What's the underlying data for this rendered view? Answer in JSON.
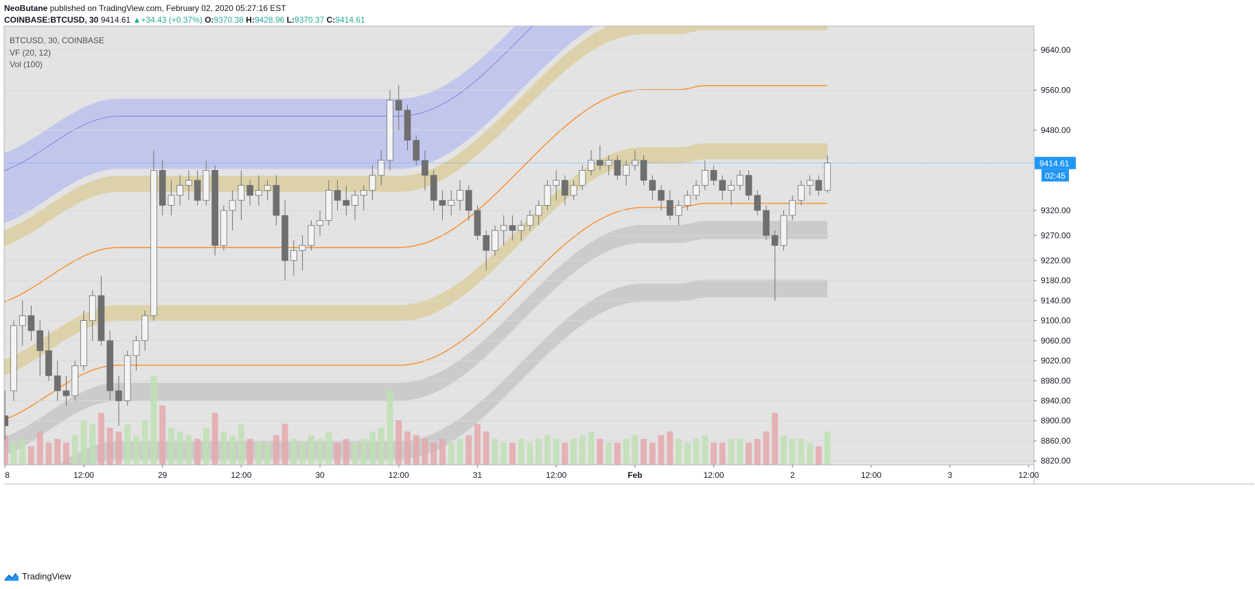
{
  "header": {
    "author": "NeoButane",
    "published_text": "published on TradingView.com, February 02, 2020 05:27:16 EST",
    "symbol_line": "COINBASE:BTCUSD, 30",
    "last": "9414.61",
    "change": "+34.43 (+0.37%)",
    "o_label": "O:",
    "o": "9370.38",
    "h_label": "H:",
    "h": "9428.96",
    "l_label": "L:",
    "l": "9370.37",
    "c_label": "C:",
    "c": "9414.61"
  },
  "legend": {
    "symbol": "BTCUSD, 30, COINBASE",
    "indicator1": "VF (20, 12)",
    "indicator2": "Vol (100)"
  },
  "price_tag": {
    "value": "9414.61",
    "countdown": "02:45"
  },
  "footer": {
    "brand": "TradingView"
  },
  "colors": {
    "background": "#e3e3e3",
    "blue_band": "#c3c6ec",
    "yellow_band": "#dcd1a8",
    "gray_band": "#cbcbcb",
    "orange_line": "#f7953a",
    "candle": "#6f6f6f",
    "price_line": "#2196f3",
    "vol_up": "#bfe0b5",
    "vol_down": "#e4a8ac"
  },
  "chart_data": {
    "type": "candlestick",
    "interval": "30m",
    "y_axis": {
      "ticks": [
        9640,
        9560,
        9480,
        9320,
        9270,
        9220,
        9180,
        9140,
        9100,
        9060,
        9020,
        8980,
        8940,
        8900,
        8860,
        8820
      ],
      "tick_labels": [
        "9640.00",
        "9560.00",
        "9480.00",
        "9320.00",
        "9270.00",
        "9220.00",
        "9180.00",
        "9140.00",
        "9100.00",
        "9060.00",
        "9020.00",
        "8980.00",
        "8940.00",
        "8900.00",
        "8860.00",
        "8820.00"
      ],
      "range": [
        8812,
        9688
      ]
    },
    "x_axis": {
      "ticks": [
        0,
        9,
        18,
        27,
        36,
        45,
        54,
        63,
        72,
        81,
        90,
        99,
        108,
        117
      ],
      "tick_labels": [
        "8",
        "12:00",
        "29",
        "12:00",
        "30",
        "12:00",
        "31",
        "12:00",
        "Feb",
        "12:00",
        "2",
        "12:00",
        "3",
        "12:00"
      ],
      "range": [
        -0.1,
        117.6
      ]
    },
    "last_price": 9414.61,
    "candles": [
      [
        8910.0,
        8960.0,
        8860.0,
        8890.0
      ],
      [
        8960.0,
        9100.0,
        8940.0,
        9090.0
      ],
      [
        9090.0,
        9140.0,
        9050.0,
        9110.0
      ],
      [
        9110.0,
        9130.0,
        9060.0,
        9080.0
      ],
      [
        9080.0,
        9100.0,
        8990.0,
        9040.0
      ],
      [
        9040.0,
        9080.0,
        8980.0,
        8990.0
      ],
      [
        8990.0,
        9020.0,
        8940.0,
        8960.0
      ],
      [
        8960.0,
        8990.0,
        8930.0,
        8950.0
      ],
      [
        8950.0,
        9020.0,
        8940.0,
        9010.0
      ],
      [
        9010.0,
        9120.0,
        9000.0,
        9100.0
      ],
      [
        9100.0,
        9160.0,
        9060.0,
        9150.0
      ],
      [
        9150.0,
        9190.0,
        9050.0,
        9060.0
      ],
      [
        9060.0,
        9080.0,
        8940.0,
        8960.0
      ],
      [
        8960.0,
        8990.0,
        8890.0,
        8940.0
      ],
      [
        8940.0,
        9040.0,
        8930.0,
        9030.0
      ],
      [
        9030.0,
        9070.0,
        9000.0,
        9060.0
      ],
      [
        9060.0,
        9120.0,
        9040.0,
        9110.0
      ],
      [
        9110.0,
        9440.0,
        9100.0,
        9400.0
      ],
      [
        9400.0,
        9420.0,
        9310.0,
        9330.0
      ],
      [
        9330.0,
        9380.0,
        9310.0,
        9350.0
      ],
      [
        9350.0,
        9390.0,
        9330.0,
        9370.0
      ],
      [
        9370.0,
        9400.0,
        9340.0,
        9380.0
      ],
      [
        9380.0,
        9400.0,
        9330.0,
        9340.0
      ],
      [
        9340.0,
        9420.0,
        9330.0,
        9400.0
      ],
      [
        9400.0,
        9410.0,
        9230.0,
        9250.0
      ],
      [
        9250.0,
        9330.0,
        9240.0,
        9320.0
      ],
      [
        9320.0,
        9360.0,
        9280.0,
        9340.0
      ],
      [
        9340.0,
        9400.0,
        9300.0,
        9370.0
      ],
      [
        9370.0,
        9380.0,
        9330.0,
        9350.0
      ],
      [
        9350.0,
        9390.0,
        9330.0,
        9360.0
      ],
      [
        9360.0,
        9380.0,
        9340.0,
        9370.0
      ],
      [
        9370.0,
        9390.0,
        9290.0,
        9310.0
      ],
      [
        9310.0,
        9340.0,
        9180.0,
        9220.0
      ],
      [
        9220.0,
        9260.0,
        9190.0,
        9240.0
      ],
      [
        9240.0,
        9270.0,
        9200.0,
        9250.0
      ],
      [
        9250.0,
        9300.0,
        9240.0,
        9290.0
      ],
      [
        9290.0,
        9320.0,
        9270.0,
        9300.0
      ],
      [
        9300.0,
        9380.0,
        9290.0,
        9360.0
      ],
      [
        9360.0,
        9380.0,
        9320.0,
        9340.0
      ],
      [
        9340.0,
        9370.0,
        9310.0,
        9330.0
      ],
      [
        9330.0,
        9360.0,
        9300.0,
        9350.0
      ],
      [
        9350.0,
        9370.0,
        9320.0,
        9360.0
      ],
      [
        9360.0,
        9410.0,
        9340.0,
        9390.0
      ],
      [
        9390.0,
        9440.0,
        9370.0,
        9420.0
      ],
      [
        9420.0,
        9560.0,
        9400.0,
        9540.0
      ],
      [
        9540.0,
        9570.0,
        9480.0,
        9520.0
      ],
      [
        9520.0,
        9530.0,
        9440.0,
        9460.0
      ],
      [
        9460.0,
        9470.0,
        9410.0,
        9420.0
      ],
      [
        9420.0,
        9440.0,
        9360.0,
        9390.0
      ],
      [
        9390.0,
        9400.0,
        9320.0,
        9340.0
      ],
      [
        9340.0,
        9360.0,
        9300.0,
        9330.0
      ],
      [
        9330.0,
        9360.0,
        9310.0,
        9340.0
      ],
      [
        9340.0,
        9380.0,
        9320.0,
        9360.0
      ],
      [
        9360.0,
        9370.0,
        9300.0,
        9320.0
      ],
      [
        9320.0,
        9330.0,
        9260.0,
        9270.0
      ],
      [
        9270.0,
        9280.0,
        9200.0,
        9240.0
      ],
      [
        9240.0,
        9290.0,
        9230.0,
        9280.0
      ],
      [
        9280.0,
        9310.0,
        9250.0,
        9290.0
      ],
      [
        9290.0,
        9310.0,
        9260.0,
        9280.0
      ],
      [
        9280.0,
        9300.0,
        9260.0,
        9290.0
      ],
      [
        9290.0,
        9320.0,
        9280.0,
        9310.0
      ],
      [
        9310.0,
        9340.0,
        9290.0,
        9330.0
      ],
      [
        9330.0,
        9380.0,
        9320.0,
        9370.0
      ],
      [
        9370.0,
        9400.0,
        9340.0,
        9380.0
      ],
      [
        9380.0,
        9390.0,
        9330.0,
        9350.0
      ],
      [
        9350.0,
        9380.0,
        9340.0,
        9370.0
      ],
      [
        9370.0,
        9410.0,
        9360.0,
        9400.0
      ],
      [
        9400.0,
        9440.0,
        9390.0,
        9420.0
      ],
      [
        9420.0,
        9450.0,
        9400.0,
        9410.0
      ],
      [
        9410.0,
        9430.0,
        9390.0,
        9420.0
      ],
      [
        9420.0,
        9430.0,
        9380.0,
        9390.0
      ],
      [
        9390.0,
        9420.0,
        9370.0,
        9410.0
      ],
      [
        9410.0,
        9440.0,
        9400.0,
        9420.0
      ],
      [
        9420.0,
        9430.0,
        9370.0,
        9380.0
      ],
      [
        9380.0,
        9390.0,
        9340.0,
        9360.0
      ],
      [
        9360.0,
        9370.0,
        9320.0,
        9340.0
      ],
      [
        9340.0,
        9360.0,
        9300.0,
        9310.0
      ],
      [
        9310.0,
        9340.0,
        9290.0,
        9330.0
      ],
      [
        9330.0,
        9360.0,
        9320.0,
        9350.0
      ],
      [
        9350.0,
        9380.0,
        9340.0,
        9370.0
      ],
      [
        9370.0,
        9420.0,
        9360.0,
        9400.0
      ],
      [
        9400.0,
        9410.0,
        9370.0,
        9380.0
      ],
      [
        9380.0,
        9390.0,
        9340.0,
        9360.0
      ],
      [
        9360.0,
        9380.0,
        9330.0,
        9370.0
      ],
      [
        9370.0,
        9400.0,
        9360.0,
        9390.0
      ],
      [
        9390.0,
        9400.0,
        9340.0,
        9350.0
      ],
      [
        9350.0,
        9360.0,
        9310.0,
        9320.0
      ],
      [
        9320.0,
        9330.0,
        9260.0,
        9270.0
      ],
      [
        9270.0,
        9280.0,
        9140.0,
        9250.0
      ],
      [
        9250.0,
        9320.0,
        9240.0,
        9310.0
      ],
      [
        9310.0,
        9350.0,
        9300.0,
        9340.0
      ],
      [
        9340.0,
        9380.0,
        9330.0,
        9370.0
      ],
      [
        9370.0,
        9390.0,
        9350.0,
        9380.0
      ],
      [
        9380.0,
        9390.0,
        9350.0,
        9360.0
      ],
      [
        9360.0,
        9430.0,
        9355.0,
        9415.0
      ]
    ],
    "volume": [
      40,
      30,
      35,
      25,
      45,
      30,
      35,
      30,
      40,
      60,
      55,
      70,
      50,
      45,
      55,
      40,
      60,
      120,
      80,
      50,
      45,
      40,
      35,
      50,
      70,
      45,
      40,
      55,
      35,
      30,
      30,
      40,
      55,
      35,
      30,
      40,
      35,
      45,
      30,
      35,
      30,
      35,
      45,
      50,
      100,
      60,
      45,
      40,
      35,
      30,
      35,
      30,
      35,
      40,
      55,
      45,
      35,
      30,
      30,
      35,
      30,
      35,
      40,
      35,
      30,
      35,
      40,
      45,
      35,
      30,
      30,
      35,
      40,
      35,
      30,
      40,
      45,
      35,
      30,
      35,
      40,
      30,
      30,
      35,
      35,
      30,
      35,
      45,
      70,
      40,
      35,
      35,
      30,
      25,
      45
    ]
  }
}
